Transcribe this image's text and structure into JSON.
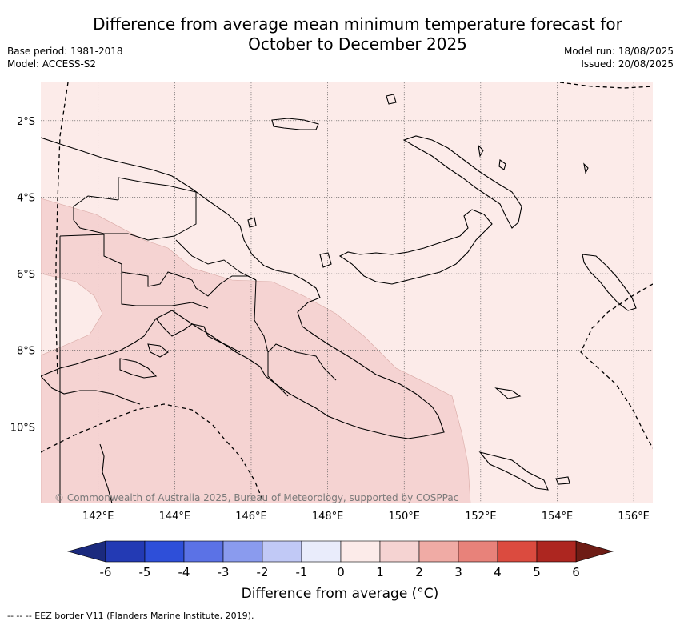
{
  "title": {
    "line1": "Difference from average mean minimum temperature forecast for",
    "line2": "October to December 2025"
  },
  "meta": {
    "base_period": "Base period: 1981-2018",
    "model": "Model: ACCESS-S2",
    "model_run": "Model run: 18/08/2025",
    "issued": "Issued: 20/08/2025"
  },
  "map": {
    "region": "Papua New Guinea",
    "lon_range": [
      140.5,
      156.5
    ],
    "lat_range": [
      -12.0,
      -1.0
    ],
    "lat_ticks": [
      {
        "value": -2,
        "label": "2°S"
      },
      {
        "value": -4,
        "label": "4°S"
      },
      {
        "value": -6,
        "label": "6°S"
      },
      {
        "value": -8,
        "label": "8°S"
      },
      {
        "value": -10,
        "label": "10°S"
      }
    ],
    "lon_ticks": [
      {
        "value": 142,
        "label": "142°E"
      },
      {
        "value": 144,
        "label": "144°E"
      },
      {
        "value": 146,
        "label": "146°E"
      },
      {
        "value": 148,
        "label": "148°E"
      },
      {
        "value": 150,
        "label": "150°E"
      },
      {
        "value": 152,
        "label": "152°E"
      },
      {
        "value": 154,
        "label": "154°E"
      },
      {
        "value": 156,
        "label": "156°E"
      }
    ],
    "gridlines": true,
    "credit": "© Commonwealth of Australia 2025, Bureau of Meteorology, supported by COSPPac"
  },
  "colorbar": {
    "title": "Difference from average (°C)",
    "tick_labels": [
      "-6",
      "-5",
      "-4",
      "-3",
      "-2",
      "-1",
      "0",
      "1",
      "2",
      "3",
      "4",
      "5",
      "6"
    ],
    "colors": [
      "#233ab4",
      "#2e4fd9",
      "#5b72e6",
      "#8a9bee",
      "#c1c9f6",
      "#e9ecfb",
      "#fcebe9",
      "#f5d3d2",
      "#f0aba5",
      "#e8827a",
      "#db4b3f",
      "#ad2620"
    ],
    "under_color": "#1b2a7e",
    "over_color": "#6e1c15"
  },
  "footnote": "-- -- -- EEZ border V11 (Flanders Marine Institute, 2019)."
}
